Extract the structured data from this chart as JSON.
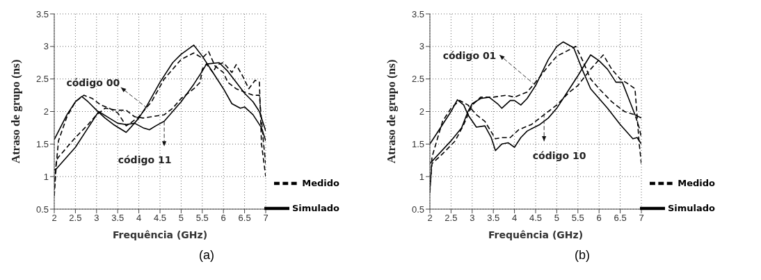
{
  "chart_data": [
    {
      "type": "line",
      "xlabel": "Frequência (GHz)",
      "ylabel": "Atraso de grupo (ns)",
      "xlim": [
        2,
        7
      ],
      "ylim": [
        0.5,
        3.5
      ],
      "xticks": [
        2,
        2.5,
        3,
        3.5,
        4,
        4.5,
        5,
        5.5,
        6,
        6.5,
        7
      ],
      "yticks": [
        0.5,
        1,
        1.5,
        2,
        2.5,
        3,
        3.5
      ],
      "grid": true,
      "legend": "bottom right",
      "marker": "none",
      "series": [
        {
          "name": "Simulado",
          "color": "#000000",
          "line_style": "solid",
          "x": [
            2,
            2.3,
            2.5,
            2.65,
            2.8,
            3.0,
            3.2,
            3.4,
            3.6,
            3.7,
            3.8,
            4.0,
            4.2,
            4.5,
            4.8,
            5.0,
            5.3,
            5.5,
            5.75,
            6.0,
            6.2,
            6.4,
            6.5,
            6.7,
            6.9,
            7.0
          ],
          "values": [
            1.57,
            1.95,
            2.15,
            2.23,
            2.15,
            2.02,
            1.9,
            1.8,
            1.72,
            1.68,
            1.75,
            1.9,
            2.1,
            2.45,
            2.75,
            2.88,
            3.02,
            2.85,
            2.6,
            2.35,
            2.12,
            2.05,
            2.07,
            1.95,
            1.75,
            1.55
          ]
        },
        {
          "name": "Medido",
          "color": "#000000",
          "line_style": "dashed",
          "x": [
            2,
            2.05,
            2.1,
            2.3,
            2.5,
            2.7,
            2.9,
            3.1,
            3.3,
            3.5,
            3.7,
            3.8,
            4.0,
            4.3,
            4.6,
            5.0,
            5.3,
            5.5,
            5.65,
            5.8,
            6.0,
            6.1,
            6.3,
            6.5,
            6.7,
            6.85,
            6.95,
            7.0
          ],
          "values": [
            0.7,
            1.2,
            1.55,
            1.92,
            2.15,
            2.25,
            2.2,
            2.1,
            2.05,
            1.98,
            1.78,
            1.82,
            1.92,
            2.15,
            2.5,
            2.8,
            2.9,
            2.82,
            2.92,
            2.7,
            2.6,
            2.45,
            2.35,
            2.3,
            2.25,
            2.25,
            1.5,
            1.2
          ]
        },
        {
          "color": "#000000",
          "line_style": "solid",
          "x": [
            2,
            2.05,
            2.5,
            2.8,
            3.05,
            3.3,
            3.5,
            3.7,
            3.9,
            4.1,
            4.25,
            4.4,
            4.6,
            4.8,
            5.0,
            5.3,
            5.5,
            5.6,
            5.9,
            6.1,
            6.3,
            6.5,
            6.7,
            6.85,
            7.0
          ],
          "values": [
            1.1,
            1.12,
            1.45,
            1.75,
            2.0,
            1.9,
            1.82,
            1.8,
            1.82,
            1.75,
            1.72,
            1.78,
            1.85,
            2.0,
            2.15,
            2.42,
            2.62,
            2.73,
            2.75,
            2.62,
            2.45,
            2.28,
            2.15,
            2.0,
            1.7
          ]
        },
        {
          "color": "#000000",
          "line_style": "dashed",
          "x": [
            2,
            2.05,
            2.1,
            2.3,
            2.5,
            2.8,
            3.0,
            3.2,
            3.5,
            3.7,
            3.9,
            4.1,
            4.4,
            4.6,
            4.8,
            5.0,
            5.3,
            5.45,
            5.5,
            5.6,
            5.75,
            5.85,
            6.0,
            6.2,
            6.3,
            6.45,
            6.6,
            6.75,
            6.85,
            6.9,
            7.0
          ],
          "values": [
            0.8,
            1.25,
            1.3,
            1.45,
            1.6,
            1.8,
            1.95,
            2.05,
            2.02,
            2.02,
            1.92,
            1.9,
            1.93,
            1.95,
            2.05,
            2.2,
            2.35,
            2.45,
            2.65,
            2.73,
            2.6,
            2.72,
            2.75,
            2.6,
            2.72,
            2.55,
            2.35,
            2.48,
            2.45,
            1.5,
            1.0
          ]
        }
      ],
      "annotations": [
        {
          "text": "código 00",
          "x": 4.2,
          "y": 2.05
        },
        {
          "text": "código 11",
          "x": 4.6,
          "y": 1.85
        },
        "(a)"
      ]
    },
    {
      "type": "line",
      "xlabel": "Frequência (GHz)",
      "ylabel": "Atraso de grupo (ns)",
      "xlim": [
        2,
        7
      ],
      "ylim": [
        0.5,
        3.5
      ],
      "xticks": [
        2,
        2.5,
        3,
        3.5,
        4,
        4.5,
        5,
        5.5,
        6,
        6.5,
        7
      ],
      "yticks": [
        0.5,
        1,
        1.5,
        2,
        2.5,
        3,
        3.5
      ],
      "grid": true,
      "legend": "bottom right",
      "marker": "none",
      "series": [
        {
          "name": "Simulado",
          "color": "#000000",
          "line_style": "solid",
          "x": [
            2,
            2.5,
            2.75,
            2.9,
            3.0,
            3.2,
            3.4,
            3.6,
            3.7,
            3.9,
            4.0,
            4.15,
            4.3,
            4.5,
            4.8,
            5.0,
            5.15,
            5.4,
            5.6,
            5.8,
            6.0,
            6.2,
            6.5,
            6.8,
            6.9,
            7.0
          ],
          "values": [
            1.2,
            1.55,
            1.75,
            2.0,
            2.12,
            2.2,
            2.22,
            2.12,
            2.05,
            2.17,
            2.17,
            2.1,
            2.2,
            2.4,
            2.8,
            3.0,
            3.07,
            2.98,
            2.65,
            2.35,
            2.2,
            2.05,
            1.8,
            1.58,
            1.6,
            1.5
          ]
        },
        {
          "name": "Medido",
          "color": "#000000",
          "line_style": "dashed",
          "x": [
            2,
            2.05,
            2.3,
            2.6,
            2.8,
            3.0,
            3.2,
            3.5,
            3.8,
            4.0,
            4.3,
            4.5,
            4.8,
            5.0,
            5.3,
            5.45,
            5.6,
            5.8,
            6.0,
            6.3,
            6.6,
            6.85,
            6.95,
            7.0
          ],
          "values": [
            0.8,
            1.2,
            1.35,
            1.55,
            1.8,
            2.1,
            2.22,
            2.22,
            2.25,
            2.22,
            2.3,
            2.45,
            2.7,
            2.85,
            2.95,
            3.0,
            2.8,
            2.5,
            2.35,
            2.15,
            2.0,
            1.95,
            1.75,
            1.6
          ]
        },
        {
          "color": "#000000",
          "line_style": "solid",
          "x": [
            2,
            2.3,
            2.5,
            2.65,
            2.8,
            2.9,
            3.1,
            3.3,
            3.45,
            3.55,
            3.7,
            3.85,
            4.0,
            4.15,
            4.3,
            4.6,
            4.8,
            5.0,
            5.3,
            5.5,
            5.8,
            6.0,
            6.2,
            6.4,
            6.55,
            6.7,
            6.85,
            7.0
          ],
          "values": [
            1.5,
            1.8,
            2.0,
            2.18,
            2.1,
            1.95,
            1.76,
            1.78,
            1.6,
            1.4,
            1.5,
            1.52,
            1.45,
            1.6,
            1.7,
            1.8,
            1.9,
            2.05,
            2.35,
            2.55,
            2.87,
            2.78,
            2.65,
            2.45,
            2.45,
            2.2,
            1.95,
            1.9
          ]
        },
        {
          "color": "#000000",
          "line_style": "dashed",
          "x": [
            2,
            2.05,
            2.3,
            2.5,
            2.7,
            2.9,
            3.1,
            3.3,
            3.55,
            3.7,
            3.9,
            4.1,
            4.4,
            4.7,
            5.0,
            5.3,
            5.5,
            5.8,
            6.1,
            6.3,
            6.5,
            6.7,
            6.85,
            6.95,
            7.0
          ],
          "values": [
            0.75,
            1.3,
            1.85,
            2.05,
            2.17,
            2.1,
            1.95,
            1.85,
            1.58,
            1.6,
            1.6,
            1.72,
            1.8,
            1.95,
            2.1,
            2.3,
            2.4,
            2.65,
            2.87,
            2.65,
            2.5,
            2.42,
            2.35,
            1.5,
            1.2
          ]
        }
      ],
      "annotations": [
        {
          "text": "código 01",
          "x": 4.5,
          "y": 2.4
        },
        {
          "text": "código 10",
          "x": 4.7,
          "y": 1.97
        },
        "(b)"
      ]
    }
  ]
}
